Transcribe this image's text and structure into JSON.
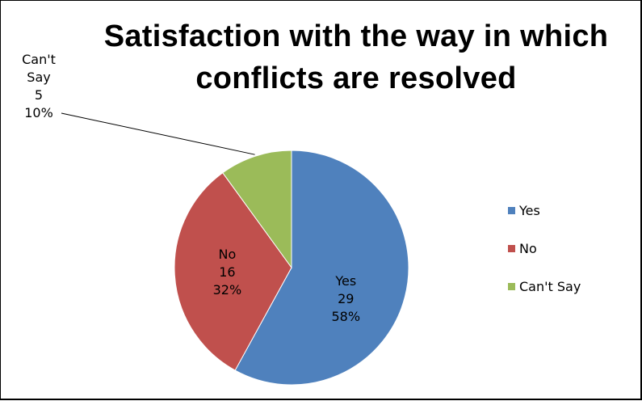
{
  "chart_data": {
    "type": "pie",
    "title": "Satisfaction with the way in which conflicts are resolved",
    "categories": [
      "Yes",
      "No",
      "Can't Say"
    ],
    "values": [
      29,
      16,
      5
    ],
    "percent_labels": [
      "58%",
      "32%",
      "10%"
    ],
    "label_lines": [
      [
        "Yes",
        "29",
        "58%"
      ],
      [
        "No",
        "16",
        "32%"
      ],
      [
        "Can't",
        "Say",
        "5",
        "10%"
      ]
    ],
    "colors": [
      "#4F81BD",
      "#C0504D",
      "#9BBB59"
    ],
    "legend": {
      "position": "right",
      "entries": [
        "Yes",
        "No",
        "Can't Say"
      ]
    },
    "start_angle_deg": 0,
    "direction": "clockwise"
  }
}
